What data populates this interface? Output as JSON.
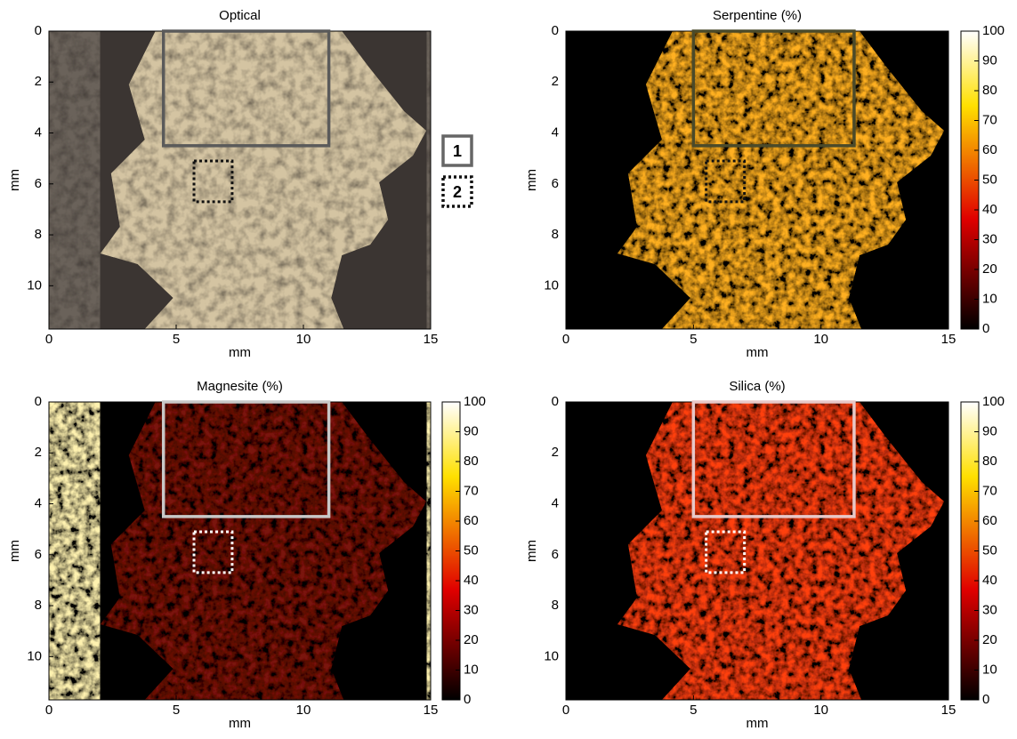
{
  "chart_data": [
    {
      "type": "image",
      "title": "Optical",
      "xlabel": "mm",
      "ylabel": "mm",
      "xlim": [
        0,
        15
      ],
      "ylim": [
        0,
        11.7
      ],
      "y_reversed": true,
      "xticks": [
        0,
        5,
        10,
        15
      ],
      "yticks": [
        0,
        2,
        4,
        6,
        8,
        10
      ],
      "regions": [
        {
          "label": "1",
          "x": [
            4.5,
            11
          ],
          "y": [
            0,
            4.5
          ],
          "color": "#5a5a5a",
          "style": "solid"
        },
        {
          "label": "2",
          "x": [
            5.7,
            7.2
          ],
          "y": [
            5.1,
            6.7
          ],
          "color": "#111111",
          "style": "dotted"
        }
      ]
    },
    {
      "type": "image",
      "title": "Serpentine (%)",
      "xlabel": "mm",
      "ylabel": "mm",
      "xlim": [
        0,
        15
      ],
      "ylim": [
        0,
        11.7
      ],
      "y_reversed": true,
      "xticks": [
        0,
        5,
        10,
        15
      ],
      "yticks": [
        0,
        2,
        4,
        6,
        8,
        10
      ],
      "clim": [
        0,
        100
      ],
      "cticks": [
        0,
        10,
        20,
        30,
        40,
        50,
        60,
        70,
        80,
        90,
        100
      ],
      "colormap": "hot",
      "regions": [
        {
          "x": [
            5,
            11.3
          ],
          "y": [
            0,
            4.5
          ],
          "color": "#4a4a2a",
          "style": "solid"
        },
        {
          "x": [
            5.5,
            7.0
          ],
          "y": [
            5.1,
            6.7
          ],
          "color": "#111111",
          "style": "dotted"
        }
      ]
    },
    {
      "type": "image",
      "title": "Magnesite (%)",
      "xlabel": "mm",
      "ylabel": "mm",
      "xlim": [
        0,
        15
      ],
      "ylim": [
        0,
        11.7
      ],
      "y_reversed": true,
      "xticks": [
        0,
        5,
        10,
        15
      ],
      "yticks": [
        0,
        2,
        4,
        6,
        8,
        10
      ],
      "clim": [
        0,
        100
      ],
      "cticks": [
        0,
        10,
        20,
        30,
        40,
        50,
        60,
        70,
        80,
        90,
        100
      ],
      "colormap": "hot",
      "regions": [
        {
          "x": [
            4.5,
            11
          ],
          "y": [
            0,
            4.5
          ],
          "color": "#c8c8c8",
          "style": "solid"
        },
        {
          "x": [
            5.7,
            7.2
          ],
          "y": [
            5.1,
            6.7
          ],
          "color": "#ffffff",
          "style": "dotted"
        }
      ]
    },
    {
      "type": "image",
      "title": "Silica (%)",
      "xlabel": "mm",
      "ylabel": "mm",
      "xlim": [
        0,
        15
      ],
      "ylim": [
        0,
        11.7
      ],
      "y_reversed": true,
      "xticks": [
        0,
        5,
        10,
        15
      ],
      "yticks": [
        0,
        2,
        4,
        6,
        8,
        10
      ],
      "clim": [
        0,
        100
      ],
      "cticks": [
        0,
        10,
        20,
        30,
        40,
        50,
        60,
        70,
        80,
        90,
        100
      ],
      "colormap": "hot",
      "regions": [
        {
          "x": [
            5,
            11.3
          ],
          "y": [
            0,
            4.5
          ],
          "color": "#e8c8c8",
          "style": "solid"
        },
        {
          "x": [
            5.5,
            7.0
          ],
          "y": [
            5.1,
            6.7
          ],
          "color": "#ffffff",
          "style": "dotted"
        }
      ]
    }
  ]
}
